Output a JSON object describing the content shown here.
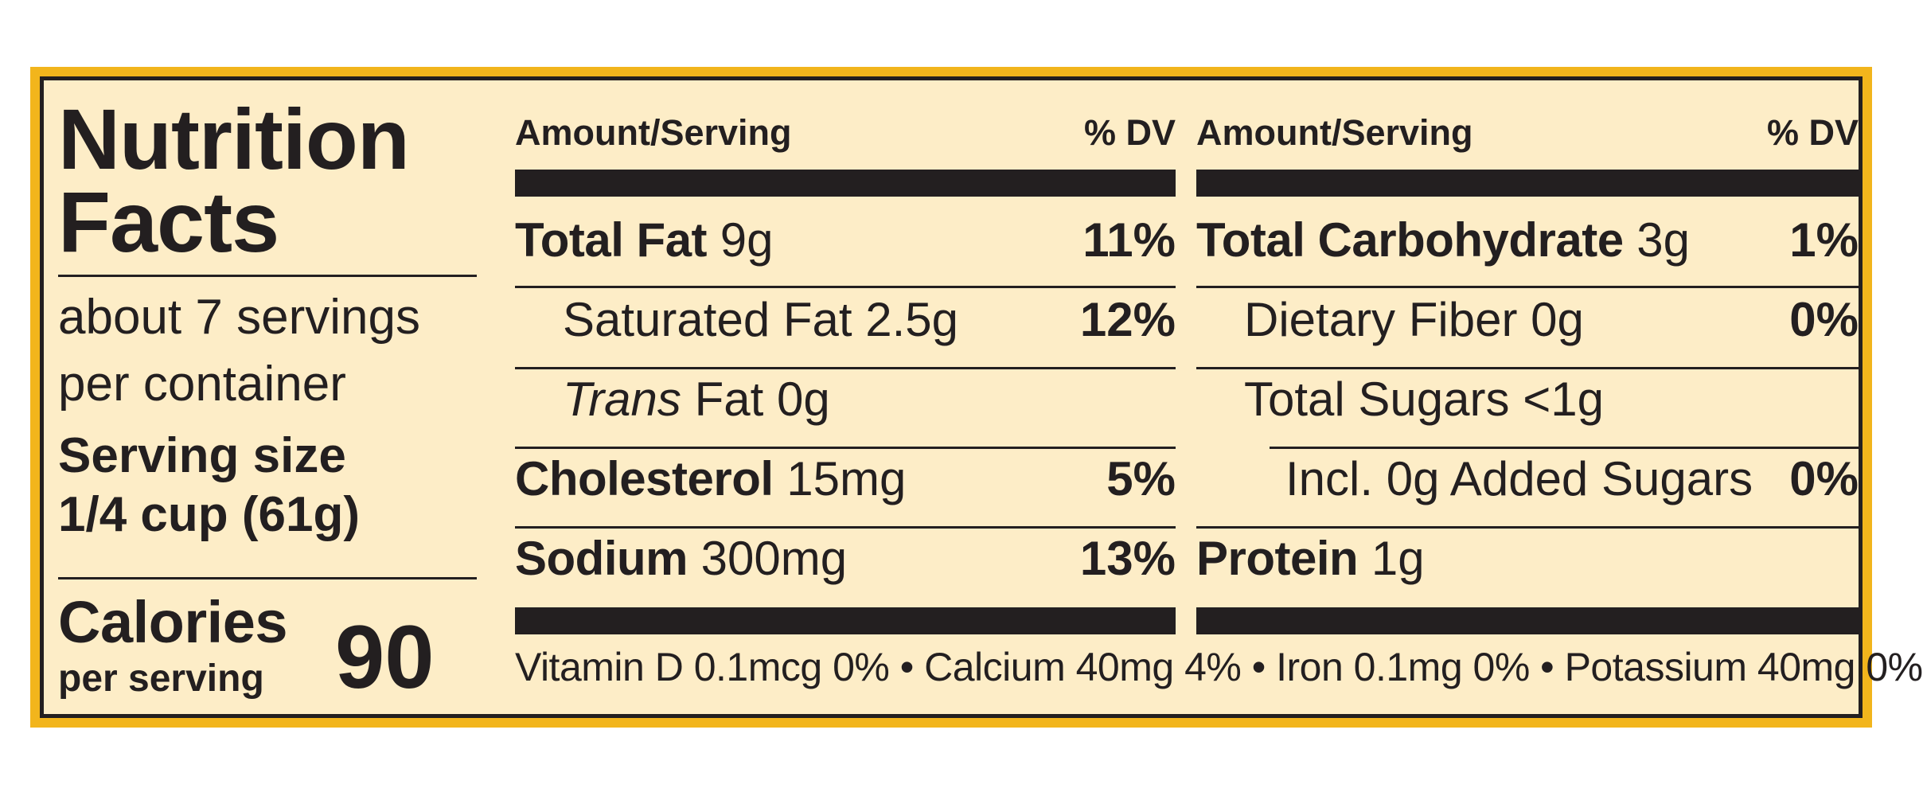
{
  "colors": {
    "border": "#f2b51c",
    "background": "#fdedc7",
    "ink": "#231f20"
  },
  "title": {
    "line1": "Nutrition",
    "line2": "Facts"
  },
  "servings": {
    "line1": "about 7 servings",
    "line2": "per container"
  },
  "serving_size": {
    "label": "Serving size",
    "value": "1/4 cup (61g)"
  },
  "calories": {
    "label": "Calories",
    "sublabel": "per serving",
    "value": "90"
  },
  "columns": [
    {
      "header_amount": "Amount/Serving",
      "header_dv": "% DV"
    },
    {
      "header_amount": "Amount/Serving",
      "header_dv": "% DV"
    }
  ],
  "left_rows": [
    {
      "name": "Total Fat",
      "amount": "9g",
      "dv": "11%"
    },
    {
      "name": "Saturated Fat",
      "amount": "2.5g",
      "dv": "12%"
    },
    {
      "name_italic": "Trans",
      "name": "Fat",
      "amount": "0g",
      "dv": ""
    },
    {
      "name": "Cholesterol",
      "amount": "15mg",
      "dv": "5%"
    },
    {
      "name": "Sodium",
      "amount": "300mg",
      "dv": "13%"
    }
  ],
  "right_rows": [
    {
      "name": "Total Carbohydrate",
      "amount": "3g",
      "dv": "1%"
    },
    {
      "name": "Dietary Fiber",
      "amount": "0g",
      "dv": "0%"
    },
    {
      "name": "Total Sugars",
      "amount": "<1g",
      "dv": ""
    },
    {
      "name": "Incl. 0g Added Sugars",
      "amount": "",
      "dv": "0%"
    },
    {
      "name": "Protein",
      "amount": "1g",
      "dv": ""
    }
  ],
  "vitamins": "Vitamin D 0.1mcg 0% • Calcium 40mg 4% • Iron 0.1mg 0% • Potassium 40mg 0%"
}
